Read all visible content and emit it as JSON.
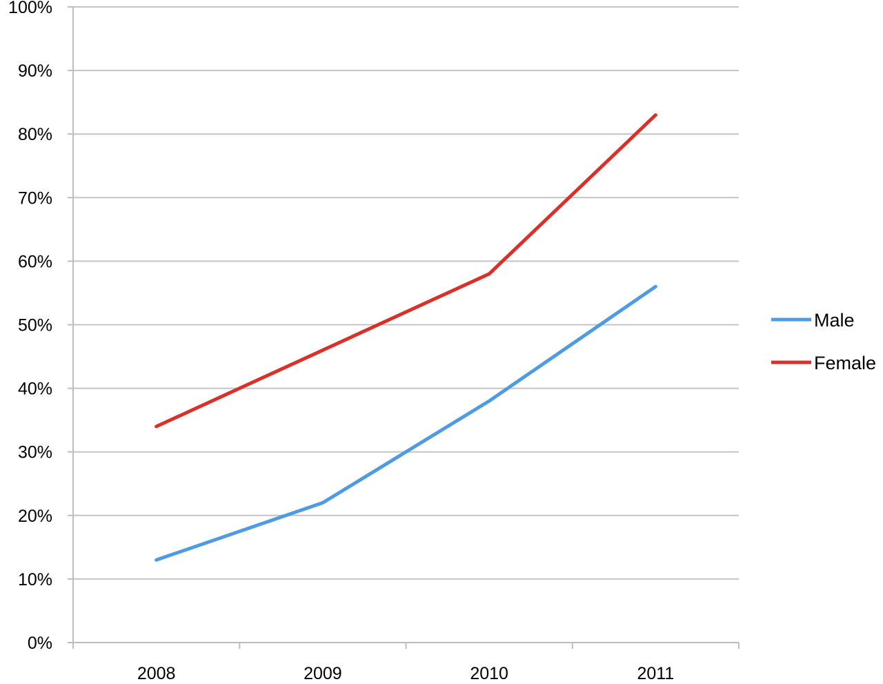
{
  "chart_data": {
    "type": "line",
    "title": "",
    "xlabel": "",
    "ylabel": "",
    "categories": [
      "2008",
      "2009",
      "2010",
      "2011"
    ],
    "series": [
      {
        "name": "Male",
        "color": "#4f9be3",
        "values": [
          13,
          22,
          38,
          56
        ]
      },
      {
        "name": "Female",
        "color": "#d9302a",
        "values": [
          34,
          46,
          58,
          83
        ]
      }
    ],
    "ylim": [
      0,
      100
    ],
    "y_ticks": [
      0,
      10,
      20,
      30,
      40,
      50,
      60,
      70,
      80,
      90,
      100
    ],
    "y_tick_labels": [
      "0%",
      "10%",
      "20%",
      "30%",
      "40%",
      "50%",
      "60%",
      "70%",
      "80%",
      "90%",
      "100%"
    ],
    "grid": true,
    "grid_color": "#c4c4c4",
    "axis_color": "#bdbdbd",
    "legend": {
      "position": "right"
    }
  }
}
